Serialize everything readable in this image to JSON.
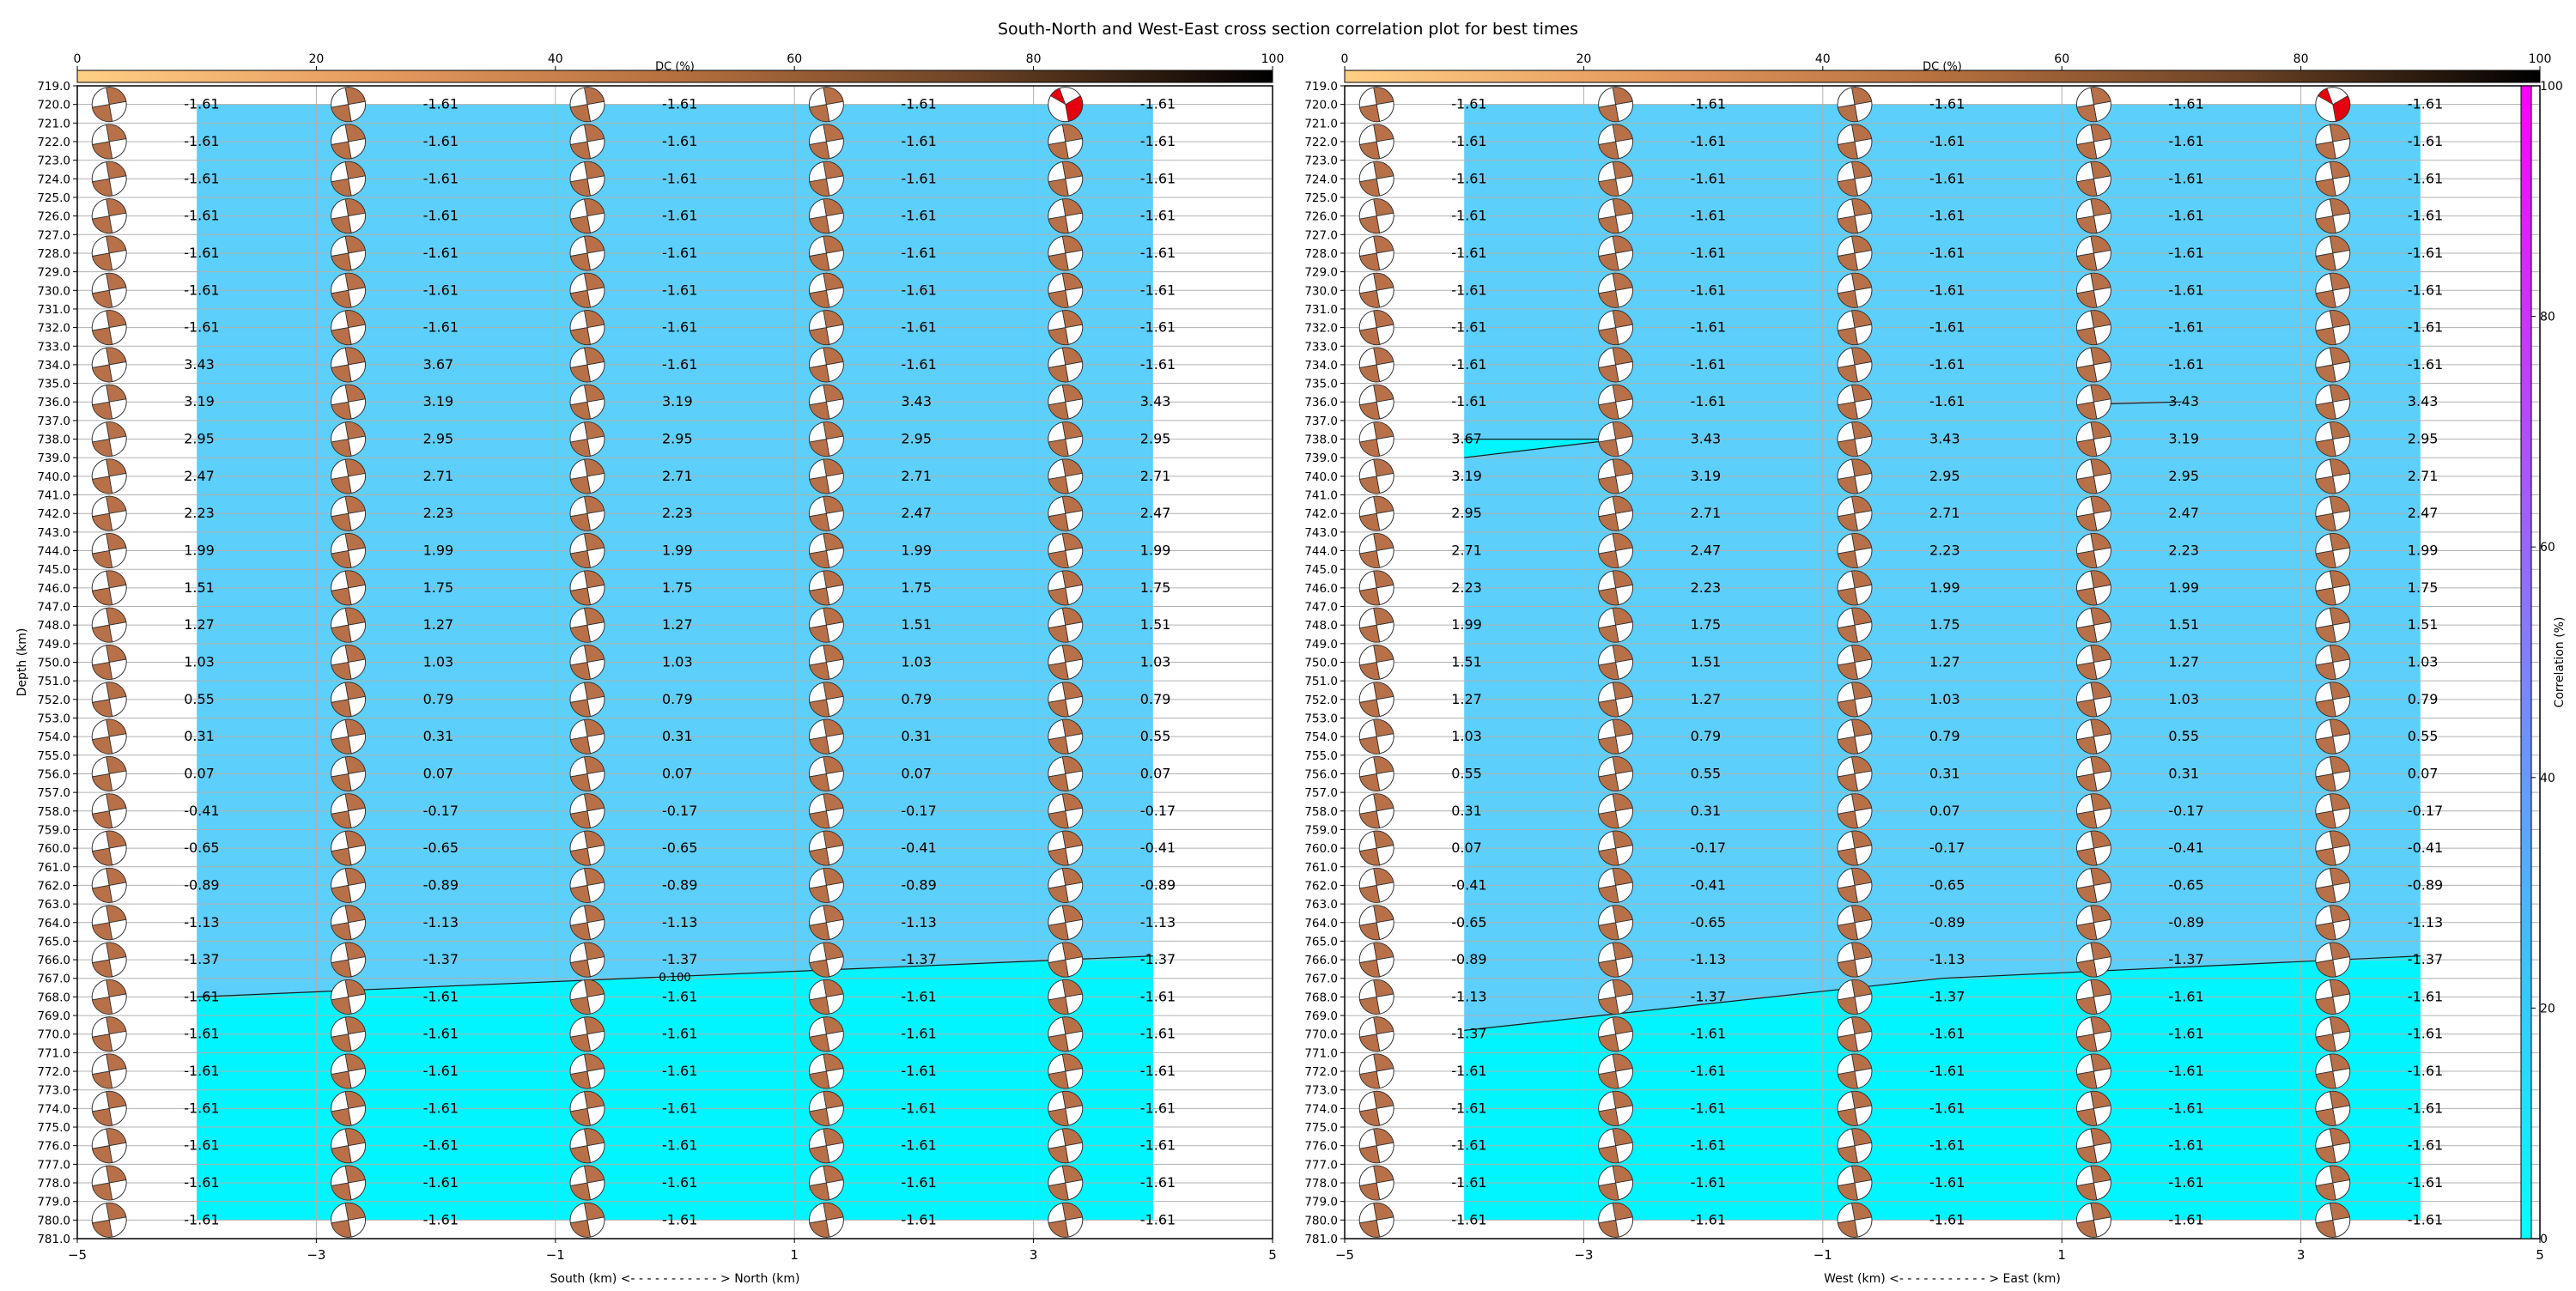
{
  "figure": {
    "title": "South-North and West-East cross section correlation plot for best times"
  },
  "colors": {
    "fill_low": "#00f5ff",
    "fill_high": "#5ccffa",
    "beachball_dc": "#b87048",
    "beachball_hi": "#e4000e",
    "grid": "#b0b0b0"
  },
  "chart_data": [
    {
      "type": "heatmap",
      "subtype": "cross-section with focal mechanisms",
      "xlabel": "South (km) <- - - - - - - - - - - > North (km)",
      "ylabel": "Depth (km)",
      "xlim": [
        -5,
        5
      ],
      "ylim": [
        781,
        719
      ],
      "x_ticks": [
        -5,
        -3,
        -1,
        1,
        3,
        5
      ],
      "y_ticks": [
        719,
        720,
        721,
        722,
        723,
        724,
        725,
        726,
        727,
        728,
        729,
        730,
        731,
        732,
        733,
        734,
        735,
        736,
        737,
        738,
        739,
        740,
        741,
        742,
        743,
        744,
        745,
        746,
        747,
        748,
        749,
        750,
        751,
        752,
        753,
        754,
        755,
        756,
        757,
        758,
        759,
        760,
        761,
        762,
        763,
        764,
        765,
        766,
        767,
        768,
        769,
        770,
        771,
        772,
        773,
        774,
        775,
        776,
        777,
        778,
        779,
        780,
        781
      ],
      "grid": true,
      "x_positions": [
        -4,
        -2,
        0,
        2,
        4
      ],
      "depths": [
        720,
        722,
        724,
        726,
        728,
        730,
        732,
        734,
        736,
        738,
        740,
        742,
        744,
        746,
        748,
        750,
        752,
        754,
        756,
        758,
        760,
        762,
        764,
        766,
        768,
        770,
        772,
        774,
        776,
        778,
        780
      ],
      "time_labels": [
        [
          "-1.61",
          "-1.61",
          "-1.61",
          "-1.61",
          "-1.61"
        ],
        [
          "-1.61",
          "-1.61",
          "-1.61",
          "-1.61",
          "-1.61"
        ],
        [
          "-1.61",
          "-1.61",
          "-1.61",
          "-1.61",
          "-1.61"
        ],
        [
          "-1.61",
          "-1.61",
          "-1.61",
          "-1.61",
          "-1.61"
        ],
        [
          "-1.61",
          "-1.61",
          "-1.61",
          "-1.61",
          "-1.61"
        ],
        [
          "-1.61",
          "-1.61",
          "-1.61",
          "-1.61",
          "-1.61"
        ],
        [
          "-1.61",
          "-1.61",
          "-1.61",
          "-1.61",
          "-1.61"
        ],
        [
          "3.43",
          "3.67",
          "-1.61",
          "-1.61",
          "-1.61"
        ],
        [
          "3.19",
          "3.19",
          "3.19",
          "3.43",
          "3.43"
        ],
        [
          "2.95",
          "2.95",
          "2.95",
          "2.95",
          "2.95"
        ],
        [
          "2.47",
          "2.71",
          "2.71",
          "2.71",
          "2.71"
        ],
        [
          "2.23",
          "2.23",
          "2.23",
          "2.47",
          "2.47"
        ],
        [
          "1.99",
          "1.99",
          "1.99",
          "1.99",
          "1.99"
        ],
        [
          "1.51",
          "1.75",
          "1.75",
          "1.75",
          "1.75"
        ],
        [
          "1.27",
          "1.27",
          "1.27",
          "1.51",
          "1.51"
        ],
        [
          "1.03",
          "1.03",
          "1.03",
          "1.03",
          "1.03"
        ],
        [
          "0.55",
          "0.79",
          "0.79",
          "0.79",
          "0.79"
        ],
        [
          "0.31",
          "0.31",
          "0.31",
          "0.31",
          "0.55"
        ],
        [
          "0.07",
          "0.07",
          "0.07",
          "0.07",
          "0.07"
        ],
        [
          "-0.41",
          "-0.17",
          "-0.17",
          "-0.17",
          "-0.17"
        ],
        [
          "-0.65",
          "-0.65",
          "-0.65",
          "-0.41",
          "-0.41"
        ],
        [
          "-0.89",
          "-0.89",
          "-0.89",
          "-0.89",
          "-0.89"
        ],
        [
          "-1.13",
          "-1.13",
          "-1.13",
          "-1.13",
          "-1.13"
        ],
        [
          "-1.37",
          "-1.37",
          "-1.37",
          "-1.37",
          "-1.37"
        ],
        [
          "-1.61",
          "-1.61",
          "-1.61",
          "-1.61",
          "-1.61"
        ],
        [
          "-1.61",
          "-1.61",
          "-1.61",
          "-1.61",
          "-1.61"
        ],
        [
          "-1.61",
          "-1.61",
          "-1.61",
          "-1.61",
          "-1.61"
        ],
        [
          "-1.61",
          "-1.61",
          "-1.61",
          "-1.61",
          "-1.61"
        ],
        [
          "-1.61",
          "-1.61",
          "-1.61",
          "-1.61",
          "-1.61"
        ],
        [
          "-1.61",
          "-1.61",
          "-1.61",
          "-1.61",
          "-1.61"
        ],
        [
          "-1.61",
          "-1.61",
          "-1.61",
          "-1.61",
          "-1.61"
        ]
      ],
      "contours": [
        {
          "label": "0.100",
          "points": [
            [
              -4,
              768
            ],
            [
              4,
              765.8
            ]
          ],
          "label_at": [
            0,
            767
          ]
        }
      ],
      "highlight": {
        "x": 4,
        "depth": 720
      },
      "dc_colorbar": {
        "label": "DC (%)",
        "range": [
          0,
          100
        ],
        "ticks": [
          0,
          20,
          40,
          60,
          80,
          100
        ]
      }
    },
    {
      "type": "heatmap",
      "subtype": "cross-section with focal mechanisms",
      "xlabel": "West (km) <- - - - - - - - - - - > East (km)",
      "ylabel": "",
      "xlim": [
        -5,
        5
      ],
      "ylim": [
        781,
        719
      ],
      "x_ticks": [
        -5,
        -3,
        -1,
        1,
        3,
        5
      ],
      "y_ticks": [
        719,
        720,
        721,
        722,
        723,
        724,
        725,
        726,
        727,
        728,
        729,
        730,
        731,
        732,
        733,
        734,
        735,
        736,
        737,
        738,
        739,
        740,
        741,
        742,
        743,
        744,
        745,
        746,
        747,
        748,
        749,
        750,
        751,
        752,
        753,
        754,
        755,
        756,
        757,
        758,
        759,
        760,
        761,
        762,
        763,
        764,
        765,
        766,
        767,
        768,
        769,
        770,
        771,
        772,
        773,
        774,
        775,
        776,
        777,
        778,
        779,
        780,
        781
      ],
      "grid": true,
      "x_positions": [
        -4,
        -2,
        0,
        2,
        4
      ],
      "depths": [
        720,
        722,
        724,
        726,
        728,
        730,
        732,
        734,
        736,
        738,
        740,
        742,
        744,
        746,
        748,
        750,
        752,
        754,
        756,
        758,
        760,
        762,
        764,
        766,
        768,
        770,
        772,
        774,
        776,
        778,
        780
      ],
      "time_labels": [
        [
          "-1.61",
          "-1.61",
          "-1.61",
          "-1.61",
          "-1.61"
        ],
        [
          "-1.61",
          "-1.61",
          "-1.61",
          "-1.61",
          "-1.61"
        ],
        [
          "-1.61",
          "-1.61",
          "-1.61",
          "-1.61",
          "-1.61"
        ],
        [
          "-1.61",
          "-1.61",
          "-1.61",
          "-1.61",
          "-1.61"
        ],
        [
          "-1.61",
          "-1.61",
          "-1.61",
          "-1.61",
          "-1.61"
        ],
        [
          "-1.61",
          "-1.61",
          "-1.61",
          "-1.61",
          "-1.61"
        ],
        [
          "-1.61",
          "-1.61",
          "-1.61",
          "-1.61",
          "-1.61"
        ],
        [
          "-1.61",
          "-1.61",
          "-1.61",
          "-1.61",
          "-1.61"
        ],
        [
          "-1.61",
          "-1.61",
          "-1.61",
          "3.43",
          "3.43"
        ],
        [
          "3.67",
          "3.43",
          "3.43",
          "3.19",
          "2.95"
        ],
        [
          "3.19",
          "3.19",
          "2.95",
          "2.95",
          "2.71"
        ],
        [
          "2.95",
          "2.71",
          "2.71",
          "2.47",
          "2.47"
        ],
        [
          "2.71",
          "2.47",
          "2.23",
          "2.23",
          "1.99"
        ],
        [
          "2.23",
          "2.23",
          "1.99",
          "1.99",
          "1.75"
        ],
        [
          "1.99",
          "1.75",
          "1.75",
          "1.51",
          "1.51"
        ],
        [
          "1.51",
          "1.51",
          "1.27",
          "1.27",
          "1.03"
        ],
        [
          "1.27",
          "1.27",
          "1.03",
          "1.03",
          "0.79"
        ],
        [
          "1.03",
          "0.79",
          "0.79",
          "0.55",
          "0.55"
        ],
        [
          "0.55",
          "0.55",
          "0.31",
          "0.31",
          "0.07"
        ],
        [
          "0.31",
          "0.31",
          "0.07",
          "-0.17",
          "-0.17"
        ],
        [
          "0.07",
          "-0.17",
          "-0.17",
          "-0.41",
          "-0.41"
        ],
        [
          "-0.41",
          "-0.41",
          "-0.65",
          "-0.65",
          "-0.89"
        ],
        [
          "-0.65",
          "-0.65",
          "-0.89",
          "-0.89",
          "-1.13"
        ],
        [
          "-0.89",
          "-1.13",
          "-1.13",
          "-1.37",
          "-1.37"
        ],
        [
          "-1.13",
          "-1.37",
          "-1.37",
          "-1.61",
          "-1.61"
        ],
        [
          "-1.37",
          "-1.61",
          "-1.61",
          "-1.61",
          "-1.61"
        ],
        [
          "-1.61",
          "-1.61",
          "-1.61",
          "-1.61",
          "-1.61"
        ],
        [
          "-1.61",
          "-1.61",
          "-1.61",
          "-1.61",
          "-1.61"
        ],
        [
          "-1.61",
          "-1.61",
          "-1.61",
          "-1.61",
          "-1.61"
        ],
        [
          "-1.61",
          "-1.61",
          "-1.61",
          "-1.61",
          "-1.61"
        ],
        [
          "-1.61",
          "-1.61",
          "-1.61",
          "-1.61",
          "-1.61"
        ]
      ],
      "contours": [
        {
          "label": "0.100",
          "points": [
            [
              -4,
              738
            ],
            [
              -2.7,
              738
            ],
            [
              -4,
              739
            ]
          ],
          "label_at": [
            -2.8,
            738
          ]
        },
        {
          "label": "0.100",
          "points": [
            [
              2,
              736
            ],
            [
              1.4,
              736.1
            ]
          ],
          "label_at": [
            1.2,
            736
          ]
        },
        {
          "label": "",
          "points": [
            [
              -4,
              769.8
            ],
            [
              0,
              767
            ],
            [
              4,
              765.8
            ]
          ]
        }
      ],
      "highlight": {
        "x": 4,
        "depth": 720
      },
      "dc_colorbar": {
        "label": "DC (%)",
        "range": [
          0,
          100
        ],
        "ticks": [
          0,
          20,
          40,
          60,
          80,
          100
        ]
      },
      "correlation_colorbar": {
        "label": "Correlation (%)",
        "range": [
          0,
          100
        ],
        "ticks": [
          0,
          20,
          40,
          60,
          80,
          100
        ]
      }
    }
  ]
}
